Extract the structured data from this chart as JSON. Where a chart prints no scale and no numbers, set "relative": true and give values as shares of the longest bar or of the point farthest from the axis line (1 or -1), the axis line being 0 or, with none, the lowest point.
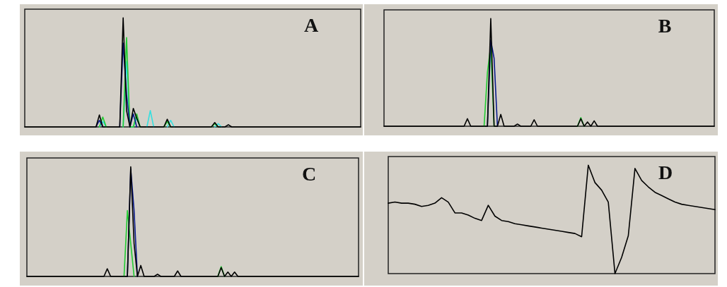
{
  "chart_data": [
    {
      "type": "line",
      "title": "A",
      "relative": true,
      "categories": [
        null,
        null,
        null,
        null,
        null,
        null,
        null,
        null,
        null,
        null,
        null,
        null,
        null,
        null,
        null,
        null,
        null,
        null,
        null,
        null,
        null,
        null,
        null,
        null,
        null,
        null,
        null,
        null,
        null,
        null,
        null,
        null,
        null,
        null,
        null,
        null,
        null,
        null,
        null,
        null,
        null,
        null,
        null,
        null,
        null,
        null,
        null,
        null,
        null,
        null,
        null,
        null,
        null,
        null,
        null,
        null,
        null,
        null,
        null,
        null,
        null,
        null,
        null,
        null,
        null,
        null,
        null,
        null,
        null,
        null,
        null,
        null,
        null,
        null,
        null,
        null,
        null,
        null,
        null,
        null,
        null,
        null,
        null,
        null,
        null,
        null,
        null,
        null,
        null,
        null,
        null,
        null,
        null,
        null,
        null,
        null,
        null,
        null,
        null,
        null
      ],
      "series": [
        {
          "color": "#33e0e0",
          "values": [
            null,
            null,
            null,
            null,
            null,
            null,
            null,
            null,
            null,
            null,
            null,
            null,
            null,
            null,
            null,
            null,
            null,
            null,
            null,
            null,
            null,
            null,
            0,
            0.05,
            0,
            null,
            null,
            null,
            null,
            0,
            0.6,
            0,
            0,
            0.08,
            0,
            null,
            0,
            0.15,
            0,
            null,
            null,
            null,
            0,
            0.06,
            0,
            null,
            null,
            null,
            null,
            null,
            null,
            null,
            null,
            null,
            null,
            null,
            0,
            0.03,
            0,
            null,
            null,
            null,
            null,
            null,
            null,
            null,
            null,
            null,
            null,
            null,
            null,
            null,
            null,
            null,
            null,
            null,
            null,
            null,
            null,
            null,
            null,
            null,
            null,
            null,
            null,
            null,
            null,
            null,
            null,
            null,
            null,
            null,
            null,
            null,
            null,
            null,
            null,
            null,
            null,
            null
          ]
        },
        {
          "color": "#22cc33",
          "values": [
            null,
            null,
            null,
            null,
            null,
            null,
            null,
            null,
            null,
            null,
            null,
            null,
            null,
            null,
            null,
            null,
            null,
            null,
            null,
            null,
            null,
            null,
            0,
            0.09,
            0,
            null,
            null,
            null,
            null,
            0,
            0.82,
            0,
            0,
            0.12,
            0,
            null,
            null,
            null,
            null,
            null,
            null,
            0,
            0.05,
            0,
            null,
            null,
            null,
            null,
            null,
            null,
            null,
            null,
            null,
            null,
            null,
            0,
            0.03,
            0,
            null,
            null,
            null,
            null,
            null,
            null,
            null,
            null,
            null,
            null,
            null,
            null,
            null,
            null,
            null,
            null,
            null,
            null,
            null,
            null,
            null,
            null,
            null,
            null,
            null,
            null,
            null,
            null,
            null,
            null,
            null,
            null,
            null,
            null,
            null,
            null,
            null,
            null,
            null,
            null,
            null,
            null
          ]
        },
        {
          "color": "#0a1a8c",
          "values": [
            null,
            null,
            null,
            null,
            null,
            null,
            null,
            null,
            null,
            null,
            null,
            null,
            null,
            null,
            null,
            null,
            null,
            null,
            null,
            null,
            null,
            0,
            0.06,
            0,
            null,
            null,
            null,
            null,
            0,
            0.77,
            0.3,
            0,
            0.12,
            0,
            null,
            null,
            null,
            null,
            null,
            null,
            null,
            null,
            null,
            null,
            null,
            null,
            null,
            null,
            null,
            null,
            null,
            null,
            null,
            null,
            null,
            null,
            null,
            null,
            null,
            null,
            null,
            null,
            null,
            null,
            null,
            null,
            null,
            null,
            null,
            null,
            null,
            null,
            null,
            null,
            null,
            null,
            null,
            null,
            null,
            null,
            null,
            null,
            null,
            null,
            null,
            null,
            null,
            null,
            null,
            null,
            null,
            null,
            null,
            null,
            null,
            null,
            null,
            null,
            null,
            null
          ]
        },
        {
          "color": "#000000",
          "values": [
            0,
            0,
            0,
            0,
            0,
            0,
            0,
            0,
            0,
            0,
            0,
            0,
            0,
            0,
            0,
            0,
            0,
            0,
            0,
            0,
            0,
            0,
            0.11,
            0,
            0,
            0,
            0,
            0,
            0,
            1,
            0.15,
            0,
            0.17,
            0.08,
            0,
            0,
            0,
            0,
            0,
            0,
            0,
            0,
            0.07,
            0,
            0,
            0,
            0,
            0,
            0,
            0,
            0,
            0,
            0,
            0,
            0,
            0,
            0.04,
            0,
            0,
            0,
            0.02,
            0,
            0,
            0,
            0,
            0,
            0,
            0,
            0,
            0,
            0,
            0,
            0,
            0,
            0,
            0,
            0,
            0,
            0,
            0,
            0,
            0,
            0,
            0,
            0,
            0,
            0,
            0,
            0,
            0,
            0,
            0,
            0,
            0,
            0,
            0,
            0,
            0,
            0,
            0
          ]
        }
      ]
    },
    {
      "type": "line",
      "title": "B",
      "relative": true,
      "categories": [
        null,
        null,
        null,
        null,
        null,
        null,
        null,
        null,
        null,
        null,
        null,
        null,
        null,
        null,
        null,
        null,
        null,
        null,
        null,
        null,
        null,
        null,
        null,
        null,
        null,
        null,
        null,
        null,
        null,
        null,
        null,
        null,
        null,
        null,
        null,
        null,
        null,
        null,
        null,
        null,
        null,
        null,
        null,
        null,
        null,
        null,
        null,
        null,
        null,
        null,
        null,
        null,
        null,
        null,
        null,
        null,
        null,
        null,
        null,
        null,
        null,
        null,
        null,
        null,
        null,
        null,
        null,
        null,
        null,
        null,
        null,
        null,
        null,
        null,
        null,
        null,
        null,
        null,
        null,
        null,
        null,
        null,
        null,
        null,
        null,
        null,
        null,
        null,
        null,
        null,
        null,
        null,
        null,
        null,
        null,
        null,
        null,
        null,
        null,
        null
      ],
      "series": [
        {
          "color": "#22cc33",
          "values": [
            null,
            null,
            null,
            null,
            null,
            null,
            null,
            null,
            null,
            null,
            null,
            null,
            null,
            null,
            null,
            null,
            null,
            null,
            null,
            null,
            null,
            null,
            null,
            null,
            null,
            null,
            null,
            null,
            null,
            null,
            0,
            0.5,
            0.75,
            0,
            null,
            null,
            null,
            null,
            null,
            null,
            null,
            null,
            null,
            null,
            null,
            null,
            null,
            null,
            null,
            null,
            null,
            null,
            null,
            null,
            null,
            null,
            null,
            null,
            0,
            0.08,
            0,
            null,
            null,
            null,
            null,
            null,
            null,
            null,
            null,
            null,
            null,
            null,
            null,
            null,
            null,
            null,
            null,
            null,
            null,
            null,
            null,
            null,
            null,
            null,
            null,
            null,
            null,
            null,
            null,
            null,
            null,
            null,
            null,
            null,
            null,
            null,
            null,
            null,
            null,
            null
          ]
        },
        {
          "color": "#0a1a8c",
          "values": [
            null,
            null,
            null,
            null,
            null,
            null,
            null,
            null,
            null,
            null,
            null,
            null,
            null,
            null,
            null,
            null,
            null,
            null,
            null,
            null,
            null,
            null,
            null,
            null,
            null,
            null,
            null,
            null,
            null,
            null,
            null,
            0,
            0.8,
            0.63,
            0,
            null,
            null,
            null,
            null,
            null,
            null,
            null,
            null,
            null,
            null,
            null,
            null,
            null,
            null,
            null,
            null,
            null,
            null,
            null,
            null,
            null,
            null,
            null,
            null,
            null,
            null,
            null,
            null,
            null,
            null,
            null,
            null,
            null,
            null,
            null,
            null,
            null,
            null,
            null,
            null,
            null,
            null,
            null,
            null,
            null,
            null,
            null,
            null,
            null,
            null,
            null,
            null,
            null,
            null,
            null,
            null,
            null,
            null,
            null,
            null,
            null,
            null,
            null,
            null,
            null
          ]
        },
        {
          "color": "#000000",
          "values": [
            0,
            0,
            0,
            0,
            0,
            0,
            0,
            0,
            0,
            0,
            0,
            0,
            0,
            0,
            0,
            0,
            0,
            0,
            0,
            0,
            0,
            0,
            0,
            0,
            0,
            0.07,
            0,
            0,
            0,
            0,
            0,
            0,
            1,
            0,
            0,
            0.11,
            0,
            0,
            0,
            0,
            0.02,
            0,
            0,
            0,
            0,
            0.06,
            0,
            0,
            0,
            0,
            0,
            0,
            0,
            0,
            0,
            0,
            0,
            0,
            0,
            0.07,
            0,
            0.04,
            0,
            0.05,
            0,
            0,
            0,
            0,
            0,
            0,
            0,
            0,
            0,
            0,
            0,
            0,
            0,
            0,
            0,
            0,
            0,
            0,
            0,
            0,
            0,
            0,
            0,
            0,
            0,
            0,
            0,
            0,
            0,
            0,
            0,
            0,
            0,
            0,
            0,
            0
          ]
        }
      ]
    },
    {
      "type": "line",
      "title": "C",
      "relative": true,
      "categories": [
        null,
        null,
        null,
        null,
        null,
        null,
        null,
        null,
        null,
        null,
        null,
        null,
        null,
        null,
        null,
        null,
        null,
        null,
        null,
        null,
        null,
        null,
        null,
        null,
        null,
        null,
        null,
        null,
        null,
        null,
        null,
        null,
        null,
        null,
        null,
        null,
        null,
        null,
        null,
        null,
        null,
        null,
        null,
        null,
        null,
        null,
        null,
        null,
        null,
        null,
        null,
        null,
        null,
        null,
        null,
        null,
        null,
        null,
        null,
        null,
        null,
        null,
        null,
        null,
        null,
        null,
        null,
        null,
        null,
        null,
        null,
        null,
        null,
        null,
        null,
        null,
        null,
        null,
        null,
        null,
        null,
        null,
        null,
        null,
        null,
        null,
        null,
        null,
        null,
        null,
        null,
        null,
        null,
        null,
        null,
        null,
        null,
        null,
        null,
        null
      ],
      "series": [
        {
          "color": "#22cc33",
          "values": [
            null,
            null,
            null,
            null,
            null,
            null,
            null,
            null,
            null,
            null,
            null,
            null,
            null,
            null,
            null,
            null,
            null,
            null,
            null,
            null,
            null,
            null,
            null,
            null,
            null,
            null,
            null,
            null,
            null,
            0,
            0.6,
            0.3,
            0,
            null,
            null,
            null,
            null,
            null,
            null,
            null,
            null,
            null,
            null,
            null,
            null,
            null,
            null,
            null,
            null,
            null,
            null,
            null,
            null,
            null,
            null,
            null,
            null,
            0,
            0.09,
            0,
            null,
            null,
            null,
            null,
            null,
            null,
            null,
            null,
            null,
            null,
            null,
            null,
            null,
            null,
            null,
            null,
            null,
            null,
            null,
            null,
            null,
            null,
            null,
            null,
            null,
            null,
            null,
            null,
            null,
            null,
            null,
            null,
            null,
            null,
            null,
            null,
            null,
            null,
            null,
            null
          ]
        },
        {
          "color": "#0a1a8c",
          "values": [
            null,
            null,
            null,
            null,
            null,
            null,
            null,
            null,
            null,
            null,
            null,
            null,
            null,
            null,
            null,
            null,
            null,
            null,
            null,
            null,
            null,
            null,
            null,
            null,
            null,
            null,
            null,
            null,
            null,
            null,
            0,
            0.98,
            0.6,
            0,
            null,
            null,
            null,
            null,
            null,
            null,
            null,
            null,
            null,
            null,
            null,
            null,
            null,
            null,
            null,
            null,
            null,
            null,
            null,
            null,
            null,
            null,
            null,
            null,
            null,
            null,
            null,
            null,
            null,
            null,
            null,
            null,
            null,
            null,
            null,
            null,
            null,
            null,
            null,
            null,
            null,
            null,
            null,
            null,
            null,
            null,
            null,
            null,
            null,
            null,
            null,
            null,
            null,
            null,
            null,
            null,
            null,
            null,
            null,
            null,
            null,
            null,
            null,
            null,
            null,
            null
          ]
        },
        {
          "color": "#000000",
          "values": [
            0,
            0,
            0,
            0,
            0,
            0,
            0,
            0,
            0,
            0,
            0,
            0,
            0,
            0,
            0,
            0,
            0,
            0,
            0,
            0,
            0,
            0,
            0,
            0,
            0.07,
            0,
            0,
            0,
            0,
            0,
            0,
            1,
            0.3,
            0,
            0.1,
            0,
            0,
            0,
            0,
            0.02,
            0,
            0,
            0,
            0,
            0,
            0.05,
            0,
            0,
            0,
            0,
            0,
            0,
            0,
            0,
            0,
            0,
            0,
            0,
            0.08,
            0,
            0.04,
            0,
            0.04,
            0,
            0,
            0,
            0,
            0,
            0,
            0,
            0,
            0,
            0,
            0,
            0,
            0,
            0,
            0,
            0,
            0,
            0,
            0,
            0,
            0,
            0,
            0,
            0,
            0,
            0,
            0,
            0,
            0,
            0,
            0,
            0,
            0,
            0,
            0,
            0,
            0
          ]
        }
      ]
    },
    {
      "type": "line",
      "title": "D",
      "relative": true,
      "categories": [
        null,
        null,
        null,
        null,
        null,
        null,
        null,
        null,
        null,
        null,
        null,
        null,
        null,
        null,
        null,
        null,
        null,
        null,
        null,
        null,
        null,
        null,
        null,
        null,
        null,
        null,
        null,
        null,
        null,
        null,
        null,
        null,
        null,
        null,
        null,
        null,
        null,
        null,
        null,
        null,
        null,
        null,
        null,
        null,
        null,
        null,
        null,
        null,
        null,
        null
      ],
      "series": [
        {
          "color": "#000000",
          "values": [
            0.65,
            0.66,
            0.65,
            0.65,
            0.64,
            0.62,
            0.63,
            0.65,
            0.7,
            0.66,
            0.56,
            0.56,
            0.54,
            0.51,
            0.49,
            0.63,
            0.53,
            0.49,
            0.48,
            0.46,
            0.45,
            0.44,
            0.43,
            0.42,
            0.41,
            0.4,
            0.39,
            0.38,
            0.37,
            0.34,
            1,
            0.84,
            0.77,
            0.66,
            0,
            0.15,
            0.35,
            0.97,
            0.86,
            0.8,
            0.75,
            0.72,
            0.69,
            0.66,
            0.64,
            0.63,
            0.62,
            0.61,
            0.6,
            0.59
          ]
        }
      ]
    }
  ]
}
